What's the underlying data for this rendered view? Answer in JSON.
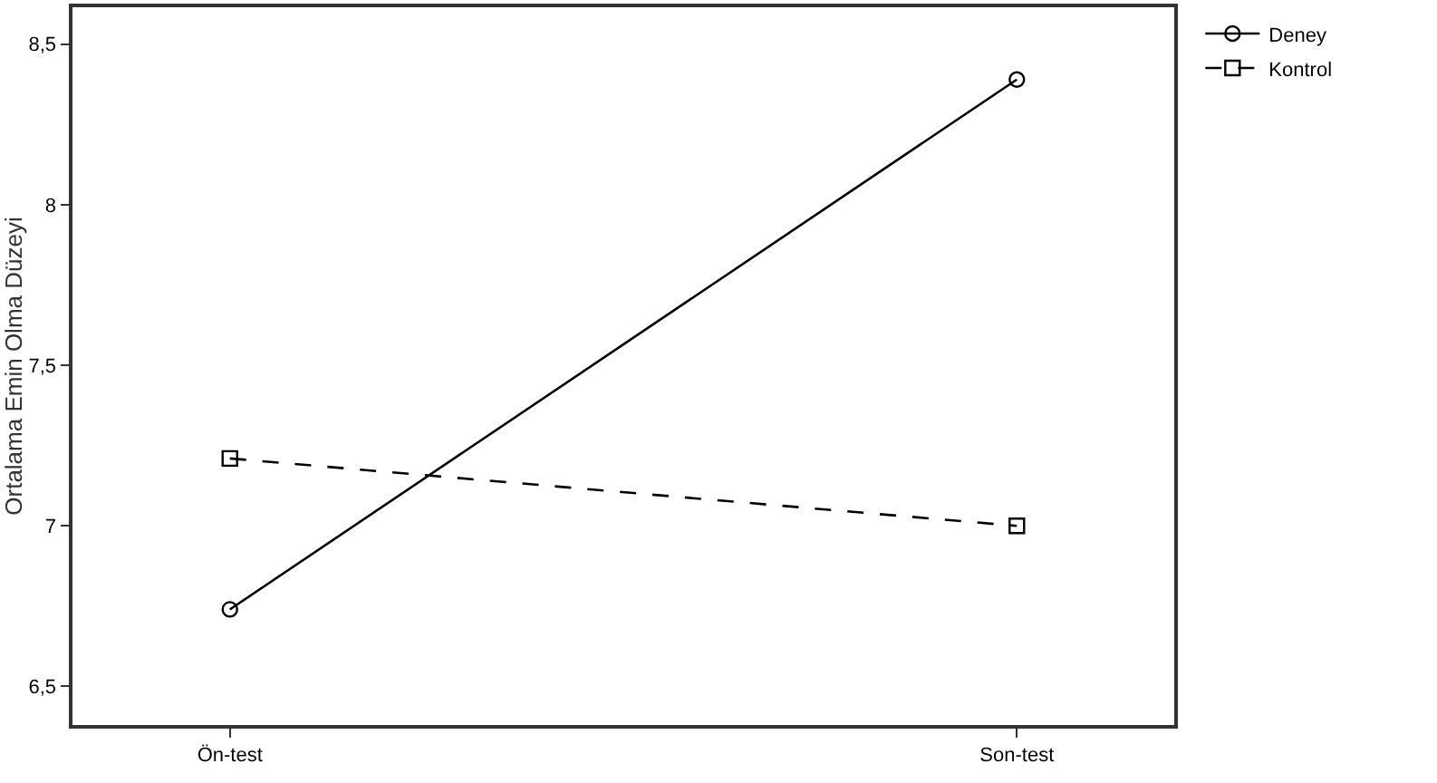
{
  "chart_data": {
    "type": "line",
    "ylabel": "Ortalama Emin Olma Düzeyi",
    "categories": [
      "Ön-test",
      "Son-test"
    ],
    "series": [
      {
        "name": "Deney",
        "color": "#000000",
        "values": [
          6.74,
          8.39
        ],
        "marker": "circle",
        "line_style": "solid"
      },
      {
        "name": "Kontrol",
        "color": "#000000",
        "values": [
          7.21,
          7.0
        ],
        "marker": "square",
        "line_style": "dashed"
      }
    ],
    "ylim": [
      6.38,
      8.615
    ],
    "yticks": [
      {
        "value": 6.5,
        "label": "6,5"
      },
      7,
      {
        "value": 7.5,
        "label": "7,5"
      },
      8,
      {
        "value": 8.5,
        "label": "8,5"
      }
    ],
    "grid": false,
    "legend": "top right"
  }
}
